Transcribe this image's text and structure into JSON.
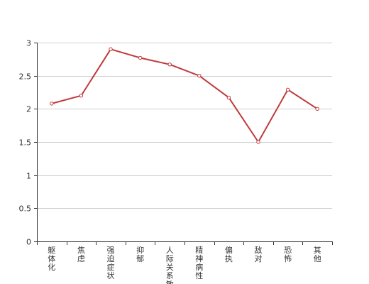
{
  "chart_data": {
    "type": "line",
    "categories": [
      "躯体化",
      "焦虑",
      "强迫症状",
      "抑郁",
      "人际关系敏感",
      "精神病性",
      "偏执",
      "敌对",
      "恐怖",
      "其他"
    ],
    "series": [
      {
        "values": [
          2.08,
          2.2,
          2.9,
          2.77,
          2.67,
          2.5,
          2.17,
          1.5,
          2.29,
          2.0
        ]
      }
    ],
    "yticks": [
      "0",
      "0.5",
      "1",
      "1.5",
      "2",
      "2.5",
      "3"
    ],
    "ylim": [
      0,
      3
    ],
    "grid": true,
    "line_color": "#c0393b",
    "title": "",
    "xlabel": "",
    "ylabel": ""
  }
}
